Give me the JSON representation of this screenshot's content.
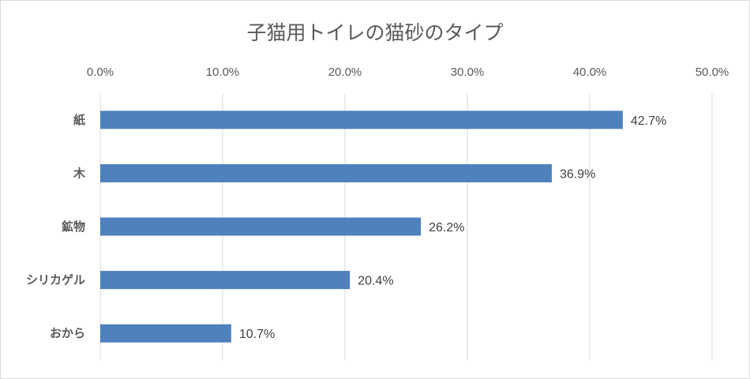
{
  "chart_data": {
    "type": "bar",
    "orientation": "horizontal",
    "title": "子猫用トイレの猫砂のタイプ",
    "categories": [
      "紙",
      "木",
      "鉱物",
      "シリカゲル",
      "おから"
    ],
    "values": [
      42.7,
      36.9,
      26.2,
      20.4,
      10.7
    ],
    "data_labels": [
      "42.7%",
      "36.9%",
      "26.2%",
      "20.4%",
      "10.7%"
    ],
    "xlim": [
      0,
      50
    ],
    "x_ticks": [
      "0.0%",
      "10.0%",
      "20.0%",
      "30.0%",
      "40.0%",
      "50.0%"
    ],
    "x_axis_position": "top",
    "grid": true,
    "legend": "none",
    "bar_color": "#4f81bd",
    "grid_color": "#d9d9d9"
  }
}
